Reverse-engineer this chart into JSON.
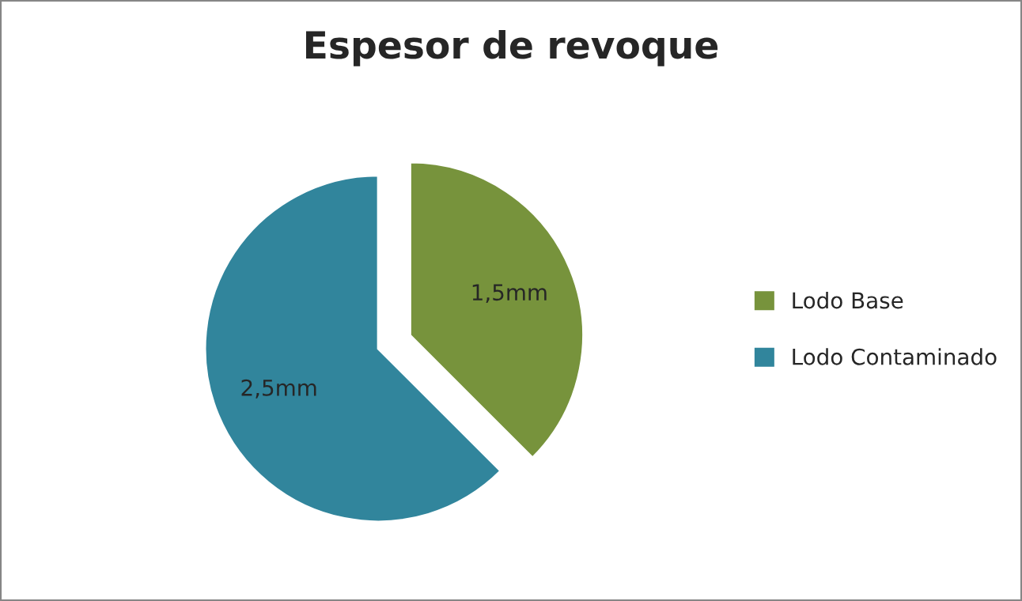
{
  "chart_data": {
    "type": "pie",
    "title": "Espesor de revoque",
    "categories": [
      "Lodo Base",
      "Lodo Contaminado"
    ],
    "values": [
      1.5,
      2.5
    ],
    "colors": [
      "#77933c",
      "#31859c"
    ],
    "value_labels": [
      "1,5mm",
      "2,5mm"
    ],
    "legend": "right"
  }
}
